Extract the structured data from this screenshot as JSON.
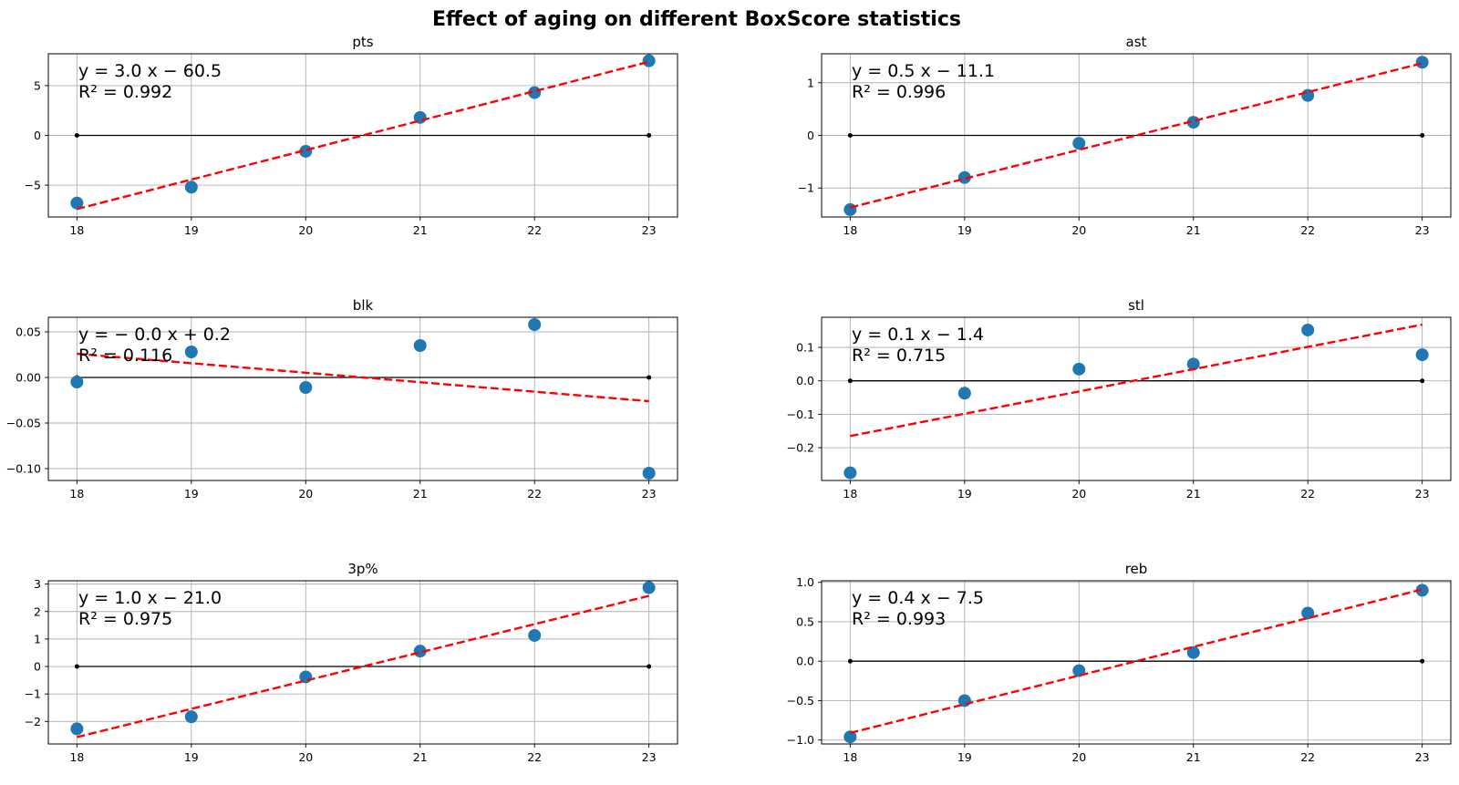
{
  "figure_title": "Effect of aging on different BoxScore statistics",
  "colors": {
    "point": "#1f77b4",
    "fit_line": "#ff0000",
    "baseline": "#000000",
    "grid": "#b0b0b0"
  },
  "chart_data": [
    {
      "type": "scatter",
      "title": "pts",
      "x": [
        18,
        19,
        20,
        21,
        22,
        23
      ],
      "y": [
        -6.8,
        -5.2,
        -1.6,
        1.8,
        4.3,
        7.5
      ],
      "fit": {
        "x": [
          18,
          23
        ],
        "y": [
          -7.4,
          7.4
        ]
      },
      "baseline": {
        "x": [
          18,
          23
        ],
        "y": [
          0,
          0
        ]
      },
      "equation": "y = 3.0 x − 60.5",
      "r2": "R² = 0.992",
      "xticks": [
        "18",
        "19",
        "20",
        "21",
        "22",
        "23"
      ],
      "yticks": [
        {
          "v": -5,
          "label": "−5"
        },
        {
          "v": 0,
          "label": "0"
        },
        {
          "v": 5,
          "label": "5"
        }
      ],
      "xlim": [
        17.75,
        23.25
      ],
      "ylim": [
        -8.2,
        8.2
      ]
    },
    {
      "type": "scatter",
      "title": "ast",
      "x": [
        18,
        19,
        20,
        21,
        22,
        23
      ],
      "y": [
        -1.41,
        -0.8,
        -0.15,
        0.25,
        0.76,
        1.39
      ],
      "fit": {
        "x": [
          18,
          23
        ],
        "y": [
          -1.37,
          1.37
        ]
      },
      "baseline": {
        "x": [
          18,
          23
        ],
        "y": [
          0,
          0
        ]
      },
      "equation": "y = 0.5 x − 11.1",
      "r2": "R² = 0.996",
      "xticks": [
        "18",
        "19",
        "20",
        "21",
        "22",
        "23"
      ],
      "yticks": [
        {
          "v": -1,
          "label": "−1"
        },
        {
          "v": 0,
          "label": "0"
        },
        {
          "v": 1,
          "label": "1"
        }
      ],
      "xlim": [
        17.75,
        23.25
      ],
      "ylim": [
        -1.55,
        1.55
      ]
    },
    {
      "type": "scatter",
      "title": "blk",
      "x": [
        18,
        19,
        20,
        21,
        22,
        23
      ],
      "y": [
        -0.005,
        0.028,
        -0.011,
        0.035,
        0.058,
        -0.105
      ],
      "fit": {
        "x": [
          18,
          23
        ],
        "y": [
          0.026,
          -0.026
        ]
      },
      "baseline": {
        "x": [
          18,
          23
        ],
        "y": [
          0,
          0
        ]
      },
      "equation": "y = − 0.0 x + 0.2",
      "r2": "R² = 0.116",
      "xticks": [
        "18",
        "19",
        "20",
        "21",
        "22",
        "23"
      ],
      "yticks": [
        {
          "v": -0.1,
          "label": "−0.10"
        },
        {
          "v": -0.05,
          "label": "−0.05"
        },
        {
          "v": 0,
          "label": "0.00"
        },
        {
          "v": 0.05,
          "label": "0.05"
        }
      ],
      "xlim": [
        17.75,
        23.25
      ],
      "ylim": [
        -0.113,
        0.066
      ]
    },
    {
      "type": "scatter",
      "title": "stl",
      "x": [
        18,
        19,
        20,
        21,
        22,
        23
      ],
      "y": [
        -0.275,
        -0.037,
        0.035,
        0.05,
        0.152,
        0.078
      ],
      "fit": {
        "x": [
          18,
          23
        ],
        "y": [
          -0.165,
          0.168
        ]
      },
      "baseline": {
        "x": [
          18,
          23
        ],
        "y": [
          0,
          0
        ]
      },
      "equation": "y = 0.1 x − 1.4",
      "r2": "R² = 0.715",
      "xticks": [
        "18",
        "19",
        "20",
        "21",
        "22",
        "23"
      ],
      "yticks": [
        {
          "v": -0.2,
          "label": "−0.2"
        },
        {
          "v": -0.1,
          "label": "−0.1"
        },
        {
          "v": 0,
          "label": "0.0"
        },
        {
          "v": 0.1,
          "label": "0.1"
        }
      ],
      "xlim": [
        17.75,
        23.25
      ],
      "ylim": [
        -0.298,
        0.19
      ]
    },
    {
      "type": "scatter",
      "title": "3p%",
      "x": [
        18,
        19,
        20,
        21,
        22,
        23
      ],
      "y": [
        -2.27,
        -1.83,
        -0.38,
        0.56,
        1.13,
        2.87
      ],
      "fit": {
        "x": [
          18,
          23
        ],
        "y": [
          -2.57,
          2.57
        ]
      },
      "baseline": {
        "x": [
          18,
          23
        ],
        "y": [
          0,
          0
        ]
      },
      "equation": "y = 1.0 x − 21.0",
      "r2": "R² = 0.975",
      "xticks": [
        "18",
        "19",
        "20",
        "21",
        "22",
        "23"
      ],
      "yticks": [
        {
          "v": -2,
          "label": "−2"
        },
        {
          "v": -1,
          "label": "−1"
        },
        {
          "v": 0,
          "label": "0"
        },
        {
          "v": 1,
          "label": "1"
        },
        {
          "v": 2,
          "label": "2"
        },
        {
          "v": 3,
          "label": "3"
        }
      ],
      "xlim": [
        17.75,
        23.25
      ],
      "ylim": [
        -2.82,
        3.12
      ]
    },
    {
      "type": "scatter",
      "title": "reb",
      "x": [
        18,
        19,
        20,
        21,
        22,
        23
      ],
      "y": [
        -0.96,
        -0.5,
        -0.12,
        0.11,
        0.61,
        0.9
      ],
      "fit": {
        "x": [
          18,
          23
        ],
        "y": [
          -0.91,
          0.91
        ]
      },
      "baseline": {
        "x": [
          18,
          23
        ],
        "y": [
          0,
          0
        ]
      },
      "equation": "y = 0.4 x − 7.5",
      "r2": "R² = 0.993",
      "xticks": [
        "18",
        "19",
        "20",
        "21",
        "22",
        "23"
      ],
      "yticks": [
        {
          "v": -1,
          "label": "−1.0"
        },
        {
          "v": -0.5,
          "label": "−0.5"
        },
        {
          "v": 0,
          "label": "0.0"
        },
        {
          "v": 0.5,
          "label": "0.5"
        },
        {
          "v": 1,
          "label": "1.0"
        }
      ],
      "xlim": [
        17.75,
        23.25
      ],
      "ylim": [
        -1.05,
        1.02
      ]
    }
  ]
}
